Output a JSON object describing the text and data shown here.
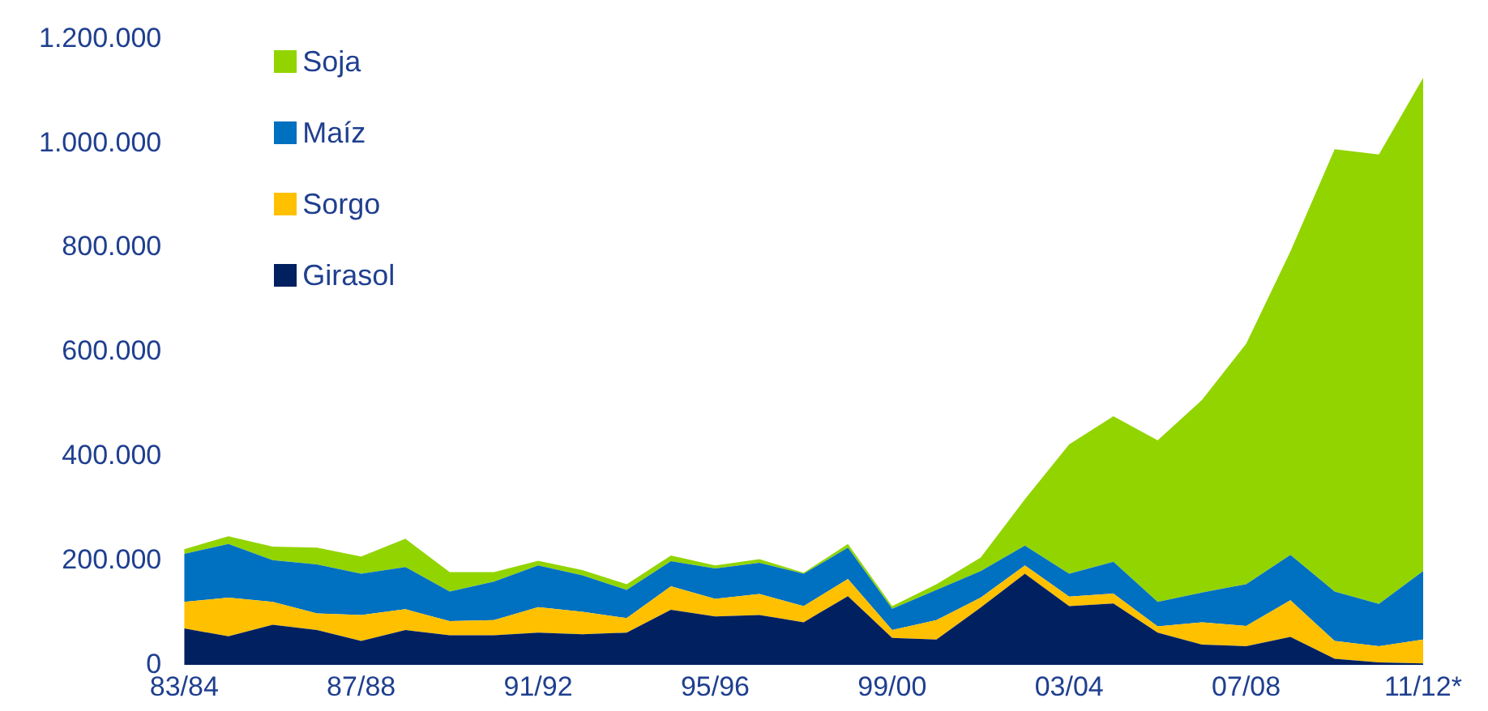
{
  "chart_data": {
    "type": "area",
    "stacked": true,
    "categories": [
      "83/84",
      null,
      null,
      null,
      "87/88",
      null,
      null,
      null,
      "91/92",
      null,
      null,
      null,
      "95/96",
      null,
      null,
      null,
      "99/00",
      null,
      null,
      null,
      "03/04",
      null,
      null,
      null,
      "07/08",
      null,
      null,
      null,
      "11/12*"
    ],
    "series": [
      {
        "name": "Girasol",
        "color": "#002060",
        "values": [
          70000,
          55000,
          77000,
          67000,
          46000,
          67000,
          57000,
          57000,
          62000,
          59000,
          62000,
          106000,
          93000,
          96000,
          82000,
          132000,
          52000,
          49000,
          110000,
          175000,
          113000,
          118000,
          62000,
          39000,
          36000,
          54000,
          12000,
          5000,
          3000
        ]
      },
      {
        "name": "Sorgo",
        "color": "#ffc000",
        "values": [
          51000,
          74000,
          44000,
          32000,
          50000,
          40000,
          27000,
          29000,
          49000,
          43000,
          28000,
          45000,
          34000,
          40000,
          31000,
          33000,
          15000,
          37000,
          19000,
          16000,
          18000,
          19000,
          12000,
          43000,
          39000,
          70000,
          34000,
          31000,
          46000
        ]
      },
      {
        "name": "Maíz",
        "color": "#0070c0",
        "values": [
          92000,
          103000,
          80000,
          94000,
          79000,
          81000,
          57000,
          74000,
          80000,
          70000,
          54000,
          48000,
          58000,
          60000,
          62000,
          60000,
          41000,
          58000,
          51000,
          38000,
          44000,
          61000,
          47000,
          57000,
          80000,
          87000,
          95000,
          81000,
          131000
        ]
      },
      {
        "name": "Soja",
        "color": "#92d400",
        "values": [
          9000,
          15000,
          26000,
          32000,
          33000,
          54000,
          37000,
          18000,
          9000,
          10000,
          11000,
          11000,
          6000,
          7000,
          2000,
          7000,
          5000,
          11000,
          26000,
          89000,
          248000,
          279000,
          310000,
          369000,
          461000,
          582000,
          848000,
          862000,
          946000
        ]
      }
    ],
    "ylim": [
      0,
      1200000
    ],
    "yticks": [
      {
        "value": 0,
        "label": "0"
      },
      {
        "value": 200000,
        "label": "200.000"
      },
      {
        "value": 400000,
        "label": "400.000"
      },
      {
        "value": 600000,
        "label": "600.000"
      },
      {
        "value": 800000,
        "label": "800.000"
      },
      {
        "value": 1000000,
        "label": "1.000.000"
      },
      {
        "value": 1200000,
        "label": "1.200.000"
      }
    ],
    "grid": false,
    "legend": "top left"
  }
}
